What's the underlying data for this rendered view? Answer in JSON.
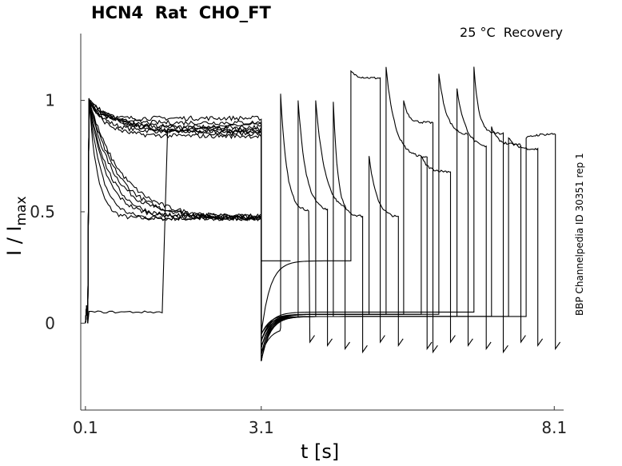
{
  "chart_data": {
    "type": "line",
    "title": "HCN4  Rat  CHO_FT",
    "condition": "25 °C  Recovery",
    "side_label": "BBP Channelpedia ID 30351 rep 1",
    "xlabel": "t [s]",
    "ylabel_main": "I / I",
    "ylabel_sub": "max",
    "xlim": [
      0.02,
      8.26
    ],
    "ylim": [
      -0.39,
      1.3
    ],
    "xticks": [
      0.1,
      3.1,
      8.1
    ],
    "xtick_labels": [
      "0.1",
      "3.1",
      "8.1"
    ],
    "yticks": [
      0,
      0.5,
      1
    ],
    "ytick_labels": [
      "0",
      "0.5",
      "1"
    ],
    "grid": false,
    "pulse1": {
      "start": 0.1,
      "end": 3.1
    },
    "sweeps": [
      {
        "p1_steady": 0.47,
        "p2_start": 3.1,
        "p2_end": 3.6,
        "p2_peak": 1.0,
        "p2_steady": 0.5,
        "gap": 0.28
      },
      {
        "p1_steady": 0.86,
        "p2_start": 3.43,
        "p2_end": 3.93,
        "p2_peak": 1.03,
        "p2_steady": 0.5,
        "gap": -0.02
      },
      {
        "p1_steady": 0.48,
        "p2_start": 3.73,
        "p2_end": 4.23,
        "p2_peak": 1.0,
        "p2_steady": 0.5,
        "gap": 0.03
      },
      {
        "p1_steady": 0.85,
        "p2_start": 4.03,
        "p2_end": 4.53,
        "p2_peak": 1.0,
        "p2_steady": 0.5,
        "gap": 0.03
      },
      {
        "p1_steady": 0.47,
        "p2_start": 4.33,
        "p2_end": 4.83,
        "p2_peak": 0.99,
        "p2_steady": 0.48,
        "gap": 0.03
      },
      {
        "p1_steady": 0.88,
        "p2_start": 4.63,
        "p2_end": 5.13,
        "p2_peak": 1.13,
        "p2_steady": 1.1,
        "gap": 0.28
      },
      {
        "p1_steady": 0.47,
        "p2_start": 4.94,
        "p2_end": 5.44,
        "p2_peak": 0.75,
        "p2_steady": 0.47,
        "gap": 0.04
      },
      {
        "p1_steady": 0.92,
        "p2_start": 5.23,
        "p2_end": 5.93,
        "p2_peak": 1.15,
        "p2_steady": 0.74,
        "gap": 0.04
      },
      {
        "p1_steady": 0.48,
        "p2_start": 5.53,
        "p2_end": 6.03,
        "p2_peak": 1.0,
        "p2_steady": 0.9,
        "gap": 0.04
      },
      {
        "p1_steady": 0.86,
        "p2_start": 5.83,
        "p2_end": 6.33,
        "p2_peak": 0.75,
        "p2_steady": 0.68,
        "gap": 0.04
      },
      {
        "p1_steady": 0.47,
        "p2_start": 6.13,
        "p2_end": 6.63,
        "p2_peak": 1.12,
        "p2_steady": 0.84,
        "gap": 0.04
      },
      {
        "p1_steady": 0.9,
        "p2_start": 6.44,
        "p2_end": 6.94,
        "p2_peak": 1.05,
        "p2_steady": 0.78,
        "gap": 0.03
      },
      {
        "p1_steady": 0.47,
        "p2_start": 6.73,
        "p2_end": 7.23,
        "p2_peak": 1.15,
        "p2_steady": 0.85,
        "gap": 0.05
      },
      {
        "p1_steady": 0.87,
        "p2_start": 7.03,
        "p2_end": 7.53,
        "p2_peak": 0.88,
        "p2_steady": 0.8,
        "gap": 0.03
      },
      {
        "p1_steady": 0.05,
        "p2_start": 7.32,
        "p2_end": 7.82,
        "p2_peak": 0.83,
        "p2_steady": 0.78,
        "gap": 0.03
      },
      {
        "p1_steady": 0.84,
        "p2_start": 7.62,
        "p2_end": 8.12,
        "p2_peak": 0.83,
        "p2_steady": 0.85,
        "gap": 0.03
      }
    ]
  }
}
